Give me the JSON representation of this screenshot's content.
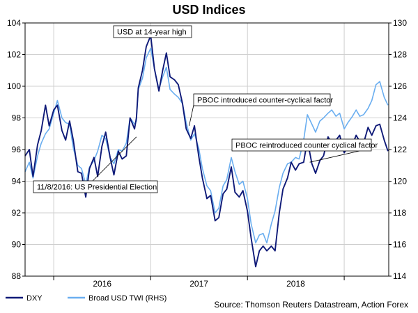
{
  "chart_data": {
    "type": "line",
    "title": "USD Indices",
    "source": "Source: Thomson Reuters Datastream, Action Forex",
    "x_tick_labels": [
      "2016",
      "2017",
      "2018"
    ],
    "y_left": {
      "min": 88,
      "max": 104,
      "step": 2,
      "ticks": [
        "88",
        "90",
        "92",
        "94",
        "96",
        "98",
        "100",
        "102",
        "104"
      ]
    },
    "y_right": {
      "min": 114,
      "max": 130,
      "step": 2,
      "ticks": [
        "114",
        "116",
        "118",
        "120",
        "122",
        "124",
        "126",
        "128",
        "130"
      ]
    },
    "grid": true,
    "legend_position": "bottom-left",
    "colors": {
      "dxy": "#0f1a78",
      "twi": "#6aaef0",
      "grid": "#cfcfcf",
      "axis": "#000000"
    },
    "series": [
      {
        "name": "DXY",
        "axis": "left",
        "points": [
          [
            "2015-09-15",
            95.6
          ],
          [
            "2015-10-01",
            96.0
          ],
          [
            "2015-10-15",
            94.3
          ],
          [
            "2015-11-01",
            96.3
          ],
          [
            "2015-11-15",
            97.2
          ],
          [
            "2015-12-01",
            98.8
          ],
          [
            "2015-12-15",
            97.5
          ],
          [
            "2016-01-01",
            98.5
          ],
          [
            "2016-01-15",
            98.8
          ],
          [
            "2016-02-01",
            97.2
          ],
          [
            "2016-02-15",
            96.6
          ],
          [
            "2016-03-01",
            97.8
          ],
          [
            "2016-03-15",
            96.6
          ],
          [
            "2016-04-01",
            94.6
          ],
          [
            "2016-04-15",
            94.5
          ],
          [
            "2016-05-01",
            93.0
          ],
          [
            "2016-05-15",
            94.8
          ],
          [
            "2016-06-01",
            95.5
          ],
          [
            "2016-06-15",
            94.3
          ],
          [
            "2016-07-01",
            96.2
          ],
          [
            "2016-07-15",
            97.1
          ],
          [
            "2016-08-01",
            95.5
          ],
          [
            "2016-08-15",
            94.4
          ],
          [
            "2016-09-01",
            95.9
          ],
          [
            "2016-09-15",
            95.4
          ],
          [
            "2016-10-01",
            95.6
          ],
          [
            "2016-10-15",
            98.0
          ],
          [
            "2016-11-01",
            97.3
          ],
          [
            "2016-11-08",
            98.0
          ],
          [
            "2016-11-15",
            99.9
          ],
          [
            "2016-12-01",
            101.0
          ],
          [
            "2016-12-15",
            102.5
          ],
          [
            "2017-01-01",
            103.2
          ],
          [
            "2017-01-15",
            101.1
          ],
          [
            "2017-02-01",
            99.7
          ],
          [
            "2017-02-15",
            101.0
          ],
          [
            "2017-03-01",
            102.1
          ],
          [
            "2017-03-15",
            100.6
          ],
          [
            "2017-04-01",
            100.4
          ],
          [
            "2017-04-15",
            100.1
          ],
          [
            "2017-05-01",
            98.9
          ],
          [
            "2017-05-15",
            97.3
          ],
          [
            "2017-06-01",
            96.7
          ],
          [
            "2017-06-15",
            97.5
          ],
          [
            "2017-07-01",
            95.6
          ],
          [
            "2017-07-15",
            94.2
          ],
          [
            "2017-08-01",
            92.9
          ],
          [
            "2017-08-15",
            93.1
          ],
          [
            "2017-09-01",
            91.5
          ],
          [
            "2017-09-15",
            91.7
          ],
          [
            "2017-10-01",
            93.2
          ],
          [
            "2017-10-15",
            93.5
          ],
          [
            "2017-11-01",
            94.9
          ],
          [
            "2017-11-15",
            93.3
          ],
          [
            "2017-12-01",
            93.0
          ],
          [
            "2017-12-15",
            93.4
          ],
          [
            "2018-01-01",
            92.1
          ],
          [
            "2018-01-15",
            90.4
          ],
          [
            "2018-02-01",
            88.6
          ],
          [
            "2018-02-15",
            89.6
          ],
          [
            "2018-03-01",
            89.9
          ],
          [
            "2018-03-15",
            89.6
          ],
          [
            "2018-04-01",
            89.9
          ],
          [
            "2018-04-15",
            89.6
          ],
          [
            "2018-05-01",
            92.0
          ],
          [
            "2018-05-15",
            93.5
          ],
          [
            "2018-06-01",
            94.2
          ],
          [
            "2018-06-15",
            95.2
          ],
          [
            "2018-07-01",
            94.7
          ],
          [
            "2018-07-15",
            95.1
          ],
          [
            "2018-08-01",
            95.2
          ],
          [
            "2018-08-15",
            96.6
          ],
          [
            "2018-09-01",
            95.1
          ],
          [
            "2018-09-15",
            94.5
          ],
          [
            "2018-10-01",
            95.3
          ],
          [
            "2018-10-15",
            95.6
          ],
          [
            "2018-11-01",
            96.8
          ],
          [
            "2018-11-15",
            96.4
          ],
          [
            "2018-12-01",
            96.6
          ],
          [
            "2018-12-15",
            96.9
          ],
          [
            "2019-01-01",
            95.8
          ],
          [
            "2019-01-15",
            96.2
          ],
          [
            "2019-02-01",
            96.3
          ],
          [
            "2019-02-15",
            96.9
          ],
          [
            "2019-03-01",
            96.5
          ],
          [
            "2019-03-15",
            96.4
          ],
          [
            "2019-04-01",
            97.4
          ],
          [
            "2019-04-15",
            96.9
          ],
          [
            "2019-05-01",
            97.5
          ],
          [
            "2019-05-15",
            97.6
          ],
          [
            "2019-06-01",
            96.6
          ],
          [
            "2019-06-15",
            95.9
          ]
        ]
      },
      {
        "name": "Broad USD TWI (RHS)",
        "axis": "right",
        "points": [
          [
            "2015-09-15",
            120.6
          ],
          [
            "2015-10-01",
            121.2
          ],
          [
            "2015-10-15",
            120.2
          ],
          [
            "2015-11-01",
            121.6
          ],
          [
            "2015-11-15",
            122.4
          ],
          [
            "2015-12-01",
            123.0
          ],
          [
            "2015-12-15",
            123.3
          ],
          [
            "2016-01-01",
            124.3
          ],
          [
            "2016-01-15",
            125.1
          ],
          [
            "2016-02-01",
            124.0
          ],
          [
            "2016-02-15",
            123.7
          ],
          [
            "2016-03-01",
            123.6
          ],
          [
            "2016-03-15",
            122.1
          ],
          [
            "2016-04-01",
            121.0
          ],
          [
            "2016-04-15",
            120.8
          ],
          [
            "2016-05-01",
            119.8
          ],
          [
            "2016-05-15",
            120.9
          ],
          [
            "2016-06-01",
            121.3
          ],
          [
            "2016-06-15",
            121.9
          ],
          [
            "2016-07-01",
            122.9
          ],
          [
            "2016-07-15",
            122.7
          ],
          [
            "2016-08-01",
            121.5
          ],
          [
            "2016-08-15",
            121.1
          ],
          [
            "2016-09-01",
            122.0
          ],
          [
            "2016-09-15",
            121.9
          ],
          [
            "2016-10-01",
            122.4
          ],
          [
            "2016-10-15",
            124.0
          ],
          [
            "2016-11-01",
            123.6
          ],
          [
            "2016-11-08",
            123.8
          ],
          [
            "2016-11-15",
            125.8
          ],
          [
            "2016-12-01",
            126.5
          ],
          [
            "2016-12-15",
            127.8
          ],
          [
            "2017-01-01",
            128.4
          ],
          [
            "2017-01-15",
            127.1
          ],
          [
            "2017-02-01",
            125.8
          ],
          [
            "2017-02-15",
            126.6
          ],
          [
            "2017-03-01",
            127.2
          ],
          [
            "2017-03-15",
            125.8
          ],
          [
            "2017-04-01",
            125.5
          ],
          [
            "2017-04-15",
            125.3
          ],
          [
            "2017-05-01",
            124.9
          ],
          [
            "2017-05-15",
            123.7
          ],
          [
            "2017-06-01",
            122.6
          ],
          [
            "2017-06-15",
            123.0
          ],
          [
            "2017-07-01",
            122.1
          ],
          [
            "2017-07-15",
            120.8
          ],
          [
            "2017-08-01",
            119.7
          ],
          [
            "2017-08-15",
            119.4
          ],
          [
            "2017-09-01",
            118.0
          ],
          [
            "2017-09-15",
            118.3
          ],
          [
            "2017-10-01",
            119.7
          ],
          [
            "2017-10-15",
            120.1
          ],
          [
            "2017-11-01",
            121.5
          ],
          [
            "2017-11-15",
            120.6
          ],
          [
            "2017-12-01",
            119.8
          ],
          [
            "2017-12-15",
            120.0
          ],
          [
            "2018-01-01",
            118.9
          ],
          [
            "2018-01-15",
            117.3
          ],
          [
            "2018-02-01",
            116.1
          ],
          [
            "2018-02-15",
            116.6
          ],
          [
            "2018-03-01",
            116.7
          ],
          [
            "2018-03-15",
            116.1
          ],
          [
            "2018-04-01",
            117.3
          ],
          [
            "2018-04-15",
            118.1
          ],
          [
            "2018-05-01",
            119.6
          ],
          [
            "2018-05-15",
            120.5
          ],
          [
            "2018-06-01",
            121.1
          ],
          [
            "2018-06-15",
            121.2
          ],
          [
            "2018-07-01",
            121.5
          ],
          [
            "2018-07-15",
            121.4
          ],
          [
            "2018-08-01",
            122.6
          ],
          [
            "2018-08-15",
            124.2
          ],
          [
            "2018-09-01",
            123.6
          ],
          [
            "2018-09-15",
            123.1
          ],
          [
            "2018-10-01",
            123.8
          ],
          [
            "2018-10-15",
            124.0
          ],
          [
            "2018-11-01",
            124.3
          ],
          [
            "2018-11-15",
            124.5
          ],
          [
            "2018-12-01",
            124.1
          ],
          [
            "2018-12-15",
            124.3
          ],
          [
            "2019-01-01",
            123.3
          ],
          [
            "2019-01-15",
            123.7
          ],
          [
            "2019-02-01",
            124.1
          ],
          [
            "2019-02-15",
            124.5
          ],
          [
            "2019-03-01",
            124.1
          ],
          [
            "2019-03-15",
            124.2
          ],
          [
            "2019-04-01",
            124.6
          ],
          [
            "2019-04-15",
            125.1
          ],
          [
            "2019-05-01",
            126.1
          ],
          [
            "2019-05-15",
            126.3
          ],
          [
            "2019-06-01",
            125.3
          ],
          [
            "2019-06-15",
            124.8
          ]
        ]
      }
    ],
    "annotations": [
      {
        "text": "USD at 14-year high",
        "date": "2017-01-01",
        "axis": "left",
        "value": 103.2
      },
      {
        "text": "PBOC introduced counter-cyclical factor",
        "date": "2017-05-26",
        "axis": "left",
        "value": 97.5
      },
      {
        "text": "PBOC reintroduced counter cyclical factor",
        "date": "2018-08-24",
        "axis": "left",
        "value": 95.2
      },
      {
        "text": "11/8/2016: US Presidential Election",
        "date": "2016-11-08",
        "axis": "left",
        "value": 96.8
      }
    ]
  }
}
